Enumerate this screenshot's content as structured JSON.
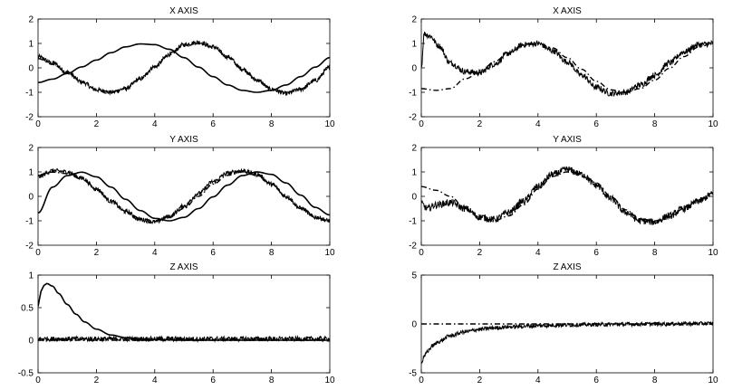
{
  "chart_data": [
    {
      "type": "line",
      "title": "X AXIS",
      "xlim": [
        0,
        10
      ],
      "ylim": [
        -2,
        2
      ],
      "xticks": [
        "0",
        "2",
        "4",
        "6",
        "8",
        "10"
      ],
      "yticks": [
        "-2",
        "-1",
        "0",
        "1",
        "2"
      ],
      "grid": false,
      "series": [
        {
          "style": "solid",
          "noise": 0,
          "x": [
            0,
            0.5,
            1,
            1.5,
            2,
            2.5,
            3,
            3.5,
            4,
            4.5,
            5,
            5.5,
            6,
            6.5,
            7,
            7.5,
            8,
            8.5,
            9,
            9.5,
            10
          ],
          "y": [
            -0.6,
            -0.46,
            -0.23,
            0.04,
            0.32,
            0.62,
            0.86,
            0.98,
            0.95,
            0.76,
            0.42,
            0.03,
            -0.36,
            -0.7,
            -0.92,
            -1.0,
            -0.92,
            -0.7,
            -0.36,
            0.03,
            0.42
          ]
        },
        {
          "style": "noisy",
          "noise": 0.09,
          "x": [
            0,
            0.5,
            1,
            1.5,
            2,
            2.5,
            3,
            3.5,
            4,
            4.5,
            5,
            5.5,
            6,
            6.5,
            7,
            7.5,
            8,
            8.5,
            9,
            9.5,
            10
          ],
          "y": [
            0.45,
            0.2,
            -0.18,
            -0.58,
            -0.9,
            -1.0,
            -0.85,
            -0.45,
            0.05,
            0.55,
            0.95,
            1.05,
            0.86,
            0.45,
            -0.04,
            -0.5,
            -0.88,
            -1.05,
            -0.88,
            -0.52,
            0.02
          ]
        },
        {
          "style": "dashdot",
          "noise": 0,
          "x": [
            0,
            0.5,
            1,
            1.5,
            2,
            2.5,
            3,
            3.5,
            4,
            4.5,
            5,
            5.5,
            6,
            6.5,
            7,
            7.5,
            8,
            8.5,
            9,
            9.5,
            10
          ],
          "y": [
            0.38,
            0.14,
            -0.2,
            -0.58,
            -0.88,
            -0.98,
            -0.84,
            -0.45,
            0.03,
            0.53,
            0.92,
            1.0,
            0.84,
            0.44,
            -0.05,
            -0.5,
            -0.86,
            -1.0,
            -0.86,
            -0.5,
            0.0
          ]
        }
      ]
    },
    {
      "type": "line",
      "title": "X AXIS",
      "xlim": [
        0,
        10
      ],
      "ylim": [
        -2,
        2
      ],
      "xticks": [
        "0",
        "2",
        "4",
        "6",
        "8",
        "10"
      ],
      "yticks": [
        "-2",
        "-1",
        "0",
        "1",
        "2"
      ],
      "grid": false,
      "series": [
        {
          "style": "noisy",
          "noise": 0.12,
          "x": [
            0,
            0.1,
            0.3,
            0.6,
            1,
            1.5,
            2,
            2.5,
            3,
            3.5,
            4,
            4.5,
            5,
            5.5,
            6,
            6.5,
            7,
            7.5,
            8,
            8.5,
            9,
            9.5,
            10
          ],
          "y": [
            0.0,
            1.4,
            1.3,
            0.9,
            0.2,
            -0.15,
            -0.2,
            0.15,
            0.6,
            0.95,
            1.0,
            0.7,
            0.25,
            -0.3,
            -0.8,
            -1.05,
            -1.0,
            -0.7,
            -0.3,
            0.2,
            0.65,
            0.95,
            1.0
          ]
        },
        {
          "style": "dashdot",
          "noise": 0,
          "x": [
            0,
            0.5,
            1,
            1.5,
            2,
            2.5,
            3,
            3.5,
            4,
            4.5,
            5,
            5.5,
            6,
            6.5,
            7,
            7.5,
            8,
            8.5,
            9,
            9.5,
            10
          ],
          "y": [
            -0.85,
            -0.92,
            -0.85,
            -0.45,
            -0.2,
            0.25,
            0.62,
            0.92,
            1.0,
            0.82,
            0.42,
            -0.06,
            -0.55,
            -0.9,
            -1.0,
            -0.85,
            -0.5,
            -0.02,
            0.46,
            0.85,
            1.0
          ]
        }
      ]
    },
    {
      "type": "line",
      "title": "Y AXIS",
      "xlim": [
        0,
        10
      ],
      "ylim": [
        -2,
        2
      ],
      "xticks": [
        "0",
        "2",
        "4",
        "6",
        "8",
        "10"
      ],
      "yticks": [
        "-2",
        "-1",
        "0",
        "1",
        "2"
      ],
      "grid": false,
      "series": [
        {
          "style": "solid",
          "noise": 0,
          "x": [
            0,
            0.5,
            1,
            1.5,
            2,
            2.5,
            3,
            3.5,
            4,
            4.5,
            5,
            5.5,
            6,
            6.5,
            7,
            7.5,
            8,
            8.5,
            9,
            9.5,
            10
          ],
          "y": [
            -0.68,
            0.38,
            0.85,
            0.99,
            0.8,
            0.38,
            -0.12,
            -0.58,
            -0.9,
            -1.0,
            -0.86,
            -0.5,
            -0.02,
            0.46,
            0.85,
            1.0,
            0.9,
            0.55,
            0.05,
            -0.45,
            -0.76
          ]
        },
        {
          "style": "noisy",
          "noise": 0.09,
          "x": [
            0,
            0.5,
            1,
            1.5,
            2,
            2.5,
            3,
            3.5,
            4,
            4.5,
            5,
            5.5,
            6,
            6.5,
            7,
            7.5,
            8,
            8.5,
            9,
            9.5,
            10
          ],
          "y": [
            0.8,
            1.05,
            1.0,
            0.75,
            0.3,
            -0.2,
            -0.62,
            -0.95,
            -1.05,
            -0.82,
            -0.4,
            0.12,
            0.6,
            0.95,
            1.05,
            0.9,
            0.5,
            0.0,
            -0.48,
            -0.85,
            -1.0
          ]
        },
        {
          "style": "dashdot",
          "noise": 0,
          "x": [
            0,
            0.5,
            1,
            1.5,
            2,
            2.5,
            3,
            3.5,
            4,
            4.5,
            5,
            5.5,
            6,
            6.5,
            7,
            7.5,
            8,
            8.5,
            9,
            9.5,
            10
          ],
          "y": [
            0.86,
            0.99,
            0.93,
            0.7,
            0.3,
            -0.18,
            -0.6,
            -0.9,
            -1.0,
            -0.86,
            -0.5,
            0.0,
            0.5,
            0.86,
            1.0,
            0.86,
            0.5,
            0.0,
            -0.5,
            -0.86,
            -1.0
          ]
        }
      ]
    },
    {
      "type": "line",
      "title": "Y AXIS",
      "xlim": [
        0,
        10
      ],
      "ylim": [
        -2,
        2
      ],
      "xticks": [
        "0",
        "2",
        "4",
        "6",
        "8",
        "10"
      ],
      "yticks": [
        "-2",
        "-1",
        "0",
        "1",
        "2"
      ],
      "grid": false,
      "series": [
        {
          "style": "noisy",
          "noise": 0.14,
          "x": [
            0,
            0.2,
            0.5,
            1,
            1.5,
            2,
            2.5,
            3,
            3.5,
            4,
            4.5,
            5,
            5.5,
            6,
            6.5,
            7,
            7.5,
            8,
            8.5,
            9,
            9.5,
            10
          ],
          "y": [
            -0.3,
            -0.5,
            -0.35,
            -0.25,
            -0.5,
            -0.85,
            -0.95,
            -0.65,
            -0.2,
            0.4,
            0.9,
            1.1,
            0.9,
            0.45,
            -0.1,
            -0.65,
            -1.0,
            -1.05,
            -0.8,
            -0.5,
            -0.2,
            0.1
          ]
        },
        {
          "style": "dashdot",
          "noise": 0,
          "x": [
            0,
            0.5,
            1,
            1.5,
            2,
            2.5,
            3,
            3.5,
            4,
            4.5,
            5,
            5.5,
            6,
            6.5,
            7,
            7.5,
            8,
            8.5,
            9,
            9.5,
            10
          ],
          "y": [
            0.4,
            0.25,
            0.0,
            -0.5,
            -0.86,
            -1.0,
            -0.8,
            -0.35,
            0.3,
            0.82,
            1.0,
            0.92,
            0.55,
            0.0,
            -0.55,
            -0.92,
            -1.0,
            -0.85,
            -0.5,
            -0.15,
            0.15
          ]
        }
      ]
    },
    {
      "type": "line",
      "title": "Z AXIS",
      "xlim": [
        0,
        10
      ],
      "ylim": [
        -0.5,
        1
      ],
      "xticks": [
        "0",
        "2",
        "4",
        "6",
        "8",
        "10"
      ],
      "yticks": [
        "-0.5",
        "0",
        "0.5",
        "1"
      ],
      "grid": false,
      "series": [
        {
          "style": "noisy",
          "noise": 0.1,
          "x": [
            0,
            1,
            2,
            3,
            4,
            5,
            6,
            7,
            8,
            9,
            10
          ],
          "y": [
            0.02,
            0.02,
            0.02,
            0.02,
            0.02,
            0.02,
            0.02,
            0.02,
            0.02,
            0.02,
            0.02
          ]
        },
        {
          "style": "solid",
          "noise": 0,
          "x": [
            0,
            0.1,
            0.2,
            0.3,
            0.5,
            0.7,
            1,
            1.3,
            1.6,
            2,
            2.5,
            3,
            3.5,
            4,
            5,
            6,
            7,
            8,
            9,
            10
          ],
          "y": [
            0.52,
            0.75,
            0.84,
            0.87,
            0.83,
            0.72,
            0.55,
            0.4,
            0.28,
            0.17,
            0.08,
            0.04,
            0.02,
            0.01,
            0.0,
            0.0,
            0.0,
            0.0,
            0.0,
            0.0
          ]
        },
        {
          "style": "dashdot",
          "noise": 0,
          "x": [
            0,
            10
          ],
          "y": [
            0.0,
            0.0
          ]
        }
      ]
    },
    {
      "type": "line",
      "title": "Z AXIS",
      "xlim": [
        0,
        10
      ],
      "ylim": [
        -5,
        5
      ],
      "xticks": [
        "0",
        "2",
        "4",
        "6",
        "8",
        "10"
      ],
      "yticks": [
        "-5",
        "0",
        "5"
      ],
      "grid": false,
      "series": [
        {
          "style": "dashdot",
          "noise": 0,
          "x": [
            0,
            10
          ],
          "y": [
            0.0,
            0.0
          ]
        },
        {
          "style": "noisy",
          "noise": 0.08,
          "x": [
            0,
            0.1,
            0.2,
            0.4,
            0.6,
            1,
            1.5,
            2,
            2.5,
            3,
            4,
            5,
            6,
            7,
            8,
            9,
            10
          ],
          "y": [
            -4.0,
            -3.4,
            -2.8,
            -2.2,
            -1.8,
            -1.2,
            -0.8,
            -0.55,
            -0.4,
            -0.3,
            -0.18,
            -0.1,
            -0.06,
            -0.03,
            0.0,
            0.02,
            0.05
          ]
        }
      ]
    }
  ]
}
